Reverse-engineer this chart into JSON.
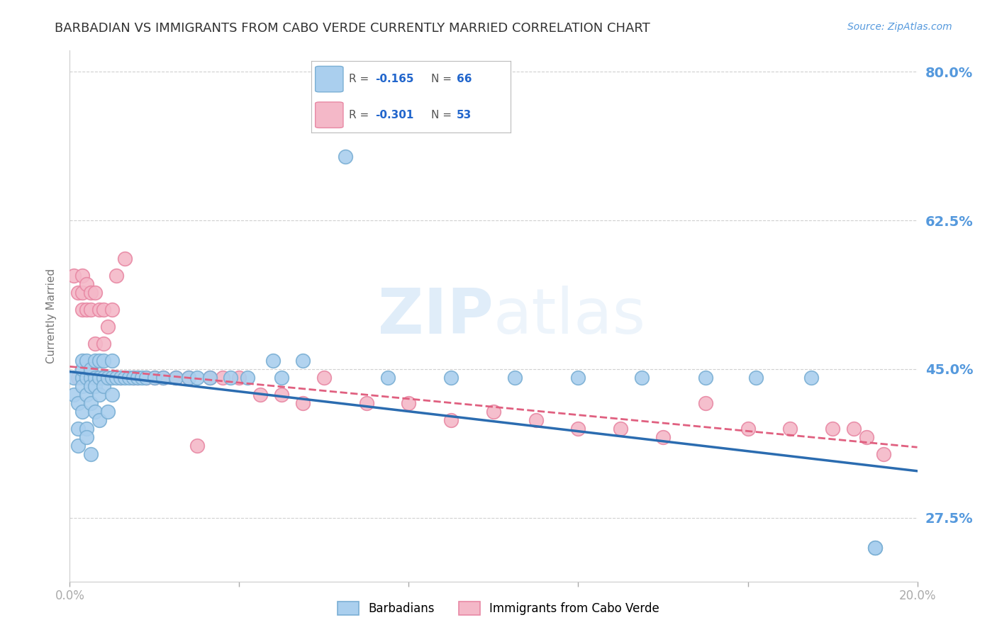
{
  "title": "BARBADIAN VS IMMIGRANTS FROM CABO VERDE CURRENTLY MARRIED CORRELATION CHART",
  "source": "Source: ZipAtlas.com",
  "ylabel": "Currently Married",
  "xlim": [
    0.0,
    0.2
  ],
  "ylim": [
    0.2,
    0.825
  ],
  "yticks": [
    0.275,
    0.45,
    0.625,
    0.8
  ],
  "ytick_labels": [
    "27.5%",
    "45.0%",
    "62.5%",
    "80.0%"
  ],
  "xticks": [
    0.0,
    0.04,
    0.08,
    0.12,
    0.16,
    0.2
  ],
  "xtick_labels": [
    "0.0%",
    "",
    "",
    "",
    "",
    "20.0%"
  ],
  "barbadian_color": "#aacfee",
  "caboverde_color": "#f4b8c8",
  "barbadian_edge": "#7aafd4",
  "caboverde_edge": "#e888a4",
  "trend_barbadian_color": "#2b6cb0",
  "trend_caboverde_color": "#e06080",
  "watermark_color": "#daeeff",
  "background_color": "#ffffff",
  "grid_color": "#d0d0d0",
  "right_tick_color": "#5599dd",
  "title_color": "#333333",
  "title_fontsize": 13,
  "source_fontsize": 10,
  "ylabel_fontsize": 11,
  "barbadian_x": [
    0.001,
    0.001,
    0.002,
    0.002,
    0.002,
    0.003,
    0.003,
    0.003,
    0.003,
    0.003,
    0.004,
    0.004,
    0.004,
    0.004,
    0.004,
    0.005,
    0.005,
    0.005,
    0.005,
    0.005,
    0.006,
    0.006,
    0.006,
    0.006,
    0.007,
    0.007,
    0.007,
    0.007,
    0.008,
    0.008,
    0.008,
    0.009,
    0.009,
    0.01,
    0.01,
    0.01,
    0.011,
    0.012,
    0.013,
    0.014,
    0.015,
    0.016,
    0.017,
    0.018,
    0.02,
    0.022,
    0.025,
    0.028,
    0.03,
    0.033,
    0.038,
    0.042,
    0.048,
    0.05,
    0.055,
    0.065,
    0.075,
    0.09,
    0.105,
    0.12,
    0.135,
    0.15,
    0.162,
    0.175,
    0.19,
    0.19
  ],
  "barbadian_y": [
    0.44,
    0.42,
    0.38,
    0.36,
    0.41,
    0.44,
    0.45,
    0.46,
    0.43,
    0.4,
    0.38,
    0.37,
    0.44,
    0.46,
    0.42,
    0.44,
    0.45,
    0.43,
    0.41,
    0.35,
    0.44,
    0.46,
    0.43,
    0.4,
    0.44,
    0.46,
    0.42,
    0.39,
    0.44,
    0.46,
    0.43,
    0.44,
    0.4,
    0.44,
    0.46,
    0.42,
    0.44,
    0.44,
    0.44,
    0.44,
    0.44,
    0.44,
    0.44,
    0.44,
    0.44,
    0.44,
    0.44,
    0.44,
    0.44,
    0.44,
    0.44,
    0.44,
    0.46,
    0.44,
    0.46,
    0.7,
    0.44,
    0.44,
    0.44,
    0.44,
    0.44,
    0.44,
    0.44,
    0.44,
    0.24,
    0.24
  ],
  "caboverde_x": [
    0.001,
    0.002,
    0.002,
    0.003,
    0.003,
    0.003,
    0.004,
    0.004,
    0.004,
    0.005,
    0.005,
    0.005,
    0.006,
    0.006,
    0.007,
    0.007,
    0.008,
    0.008,
    0.009,
    0.01,
    0.011,
    0.012,
    0.013,
    0.015,
    0.016,
    0.018,
    0.02,
    0.022,
    0.025,
    0.028,
    0.03,
    0.033,
    0.036,
    0.04,
    0.045,
    0.05,
    0.055,
    0.06,
    0.07,
    0.08,
    0.09,
    0.1,
    0.11,
    0.12,
    0.13,
    0.14,
    0.15,
    0.16,
    0.17,
    0.18,
    0.185,
    0.188,
    0.192
  ],
  "caboverde_y": [
    0.56,
    0.54,
    0.44,
    0.56,
    0.54,
    0.52,
    0.55,
    0.52,
    0.44,
    0.54,
    0.52,
    0.44,
    0.54,
    0.48,
    0.52,
    0.44,
    0.52,
    0.48,
    0.5,
    0.52,
    0.56,
    0.44,
    0.58,
    0.44,
    0.44,
    0.44,
    0.44,
    0.44,
    0.44,
    0.44,
    0.36,
    0.44,
    0.44,
    0.44,
    0.42,
    0.42,
    0.41,
    0.44,
    0.41,
    0.41,
    0.39,
    0.4,
    0.39,
    0.38,
    0.38,
    0.37,
    0.41,
    0.38,
    0.38,
    0.38,
    0.38,
    0.37,
    0.35
  ],
  "trend_barb_x0": 0.0,
  "trend_barb_y0": 0.447,
  "trend_barb_x1": 0.2,
  "trend_barb_y1": 0.33,
  "trend_cabo_x0": 0.0,
  "trend_cabo_y0": 0.453,
  "trend_cabo_x1": 0.2,
  "trend_cabo_y1": 0.358
}
